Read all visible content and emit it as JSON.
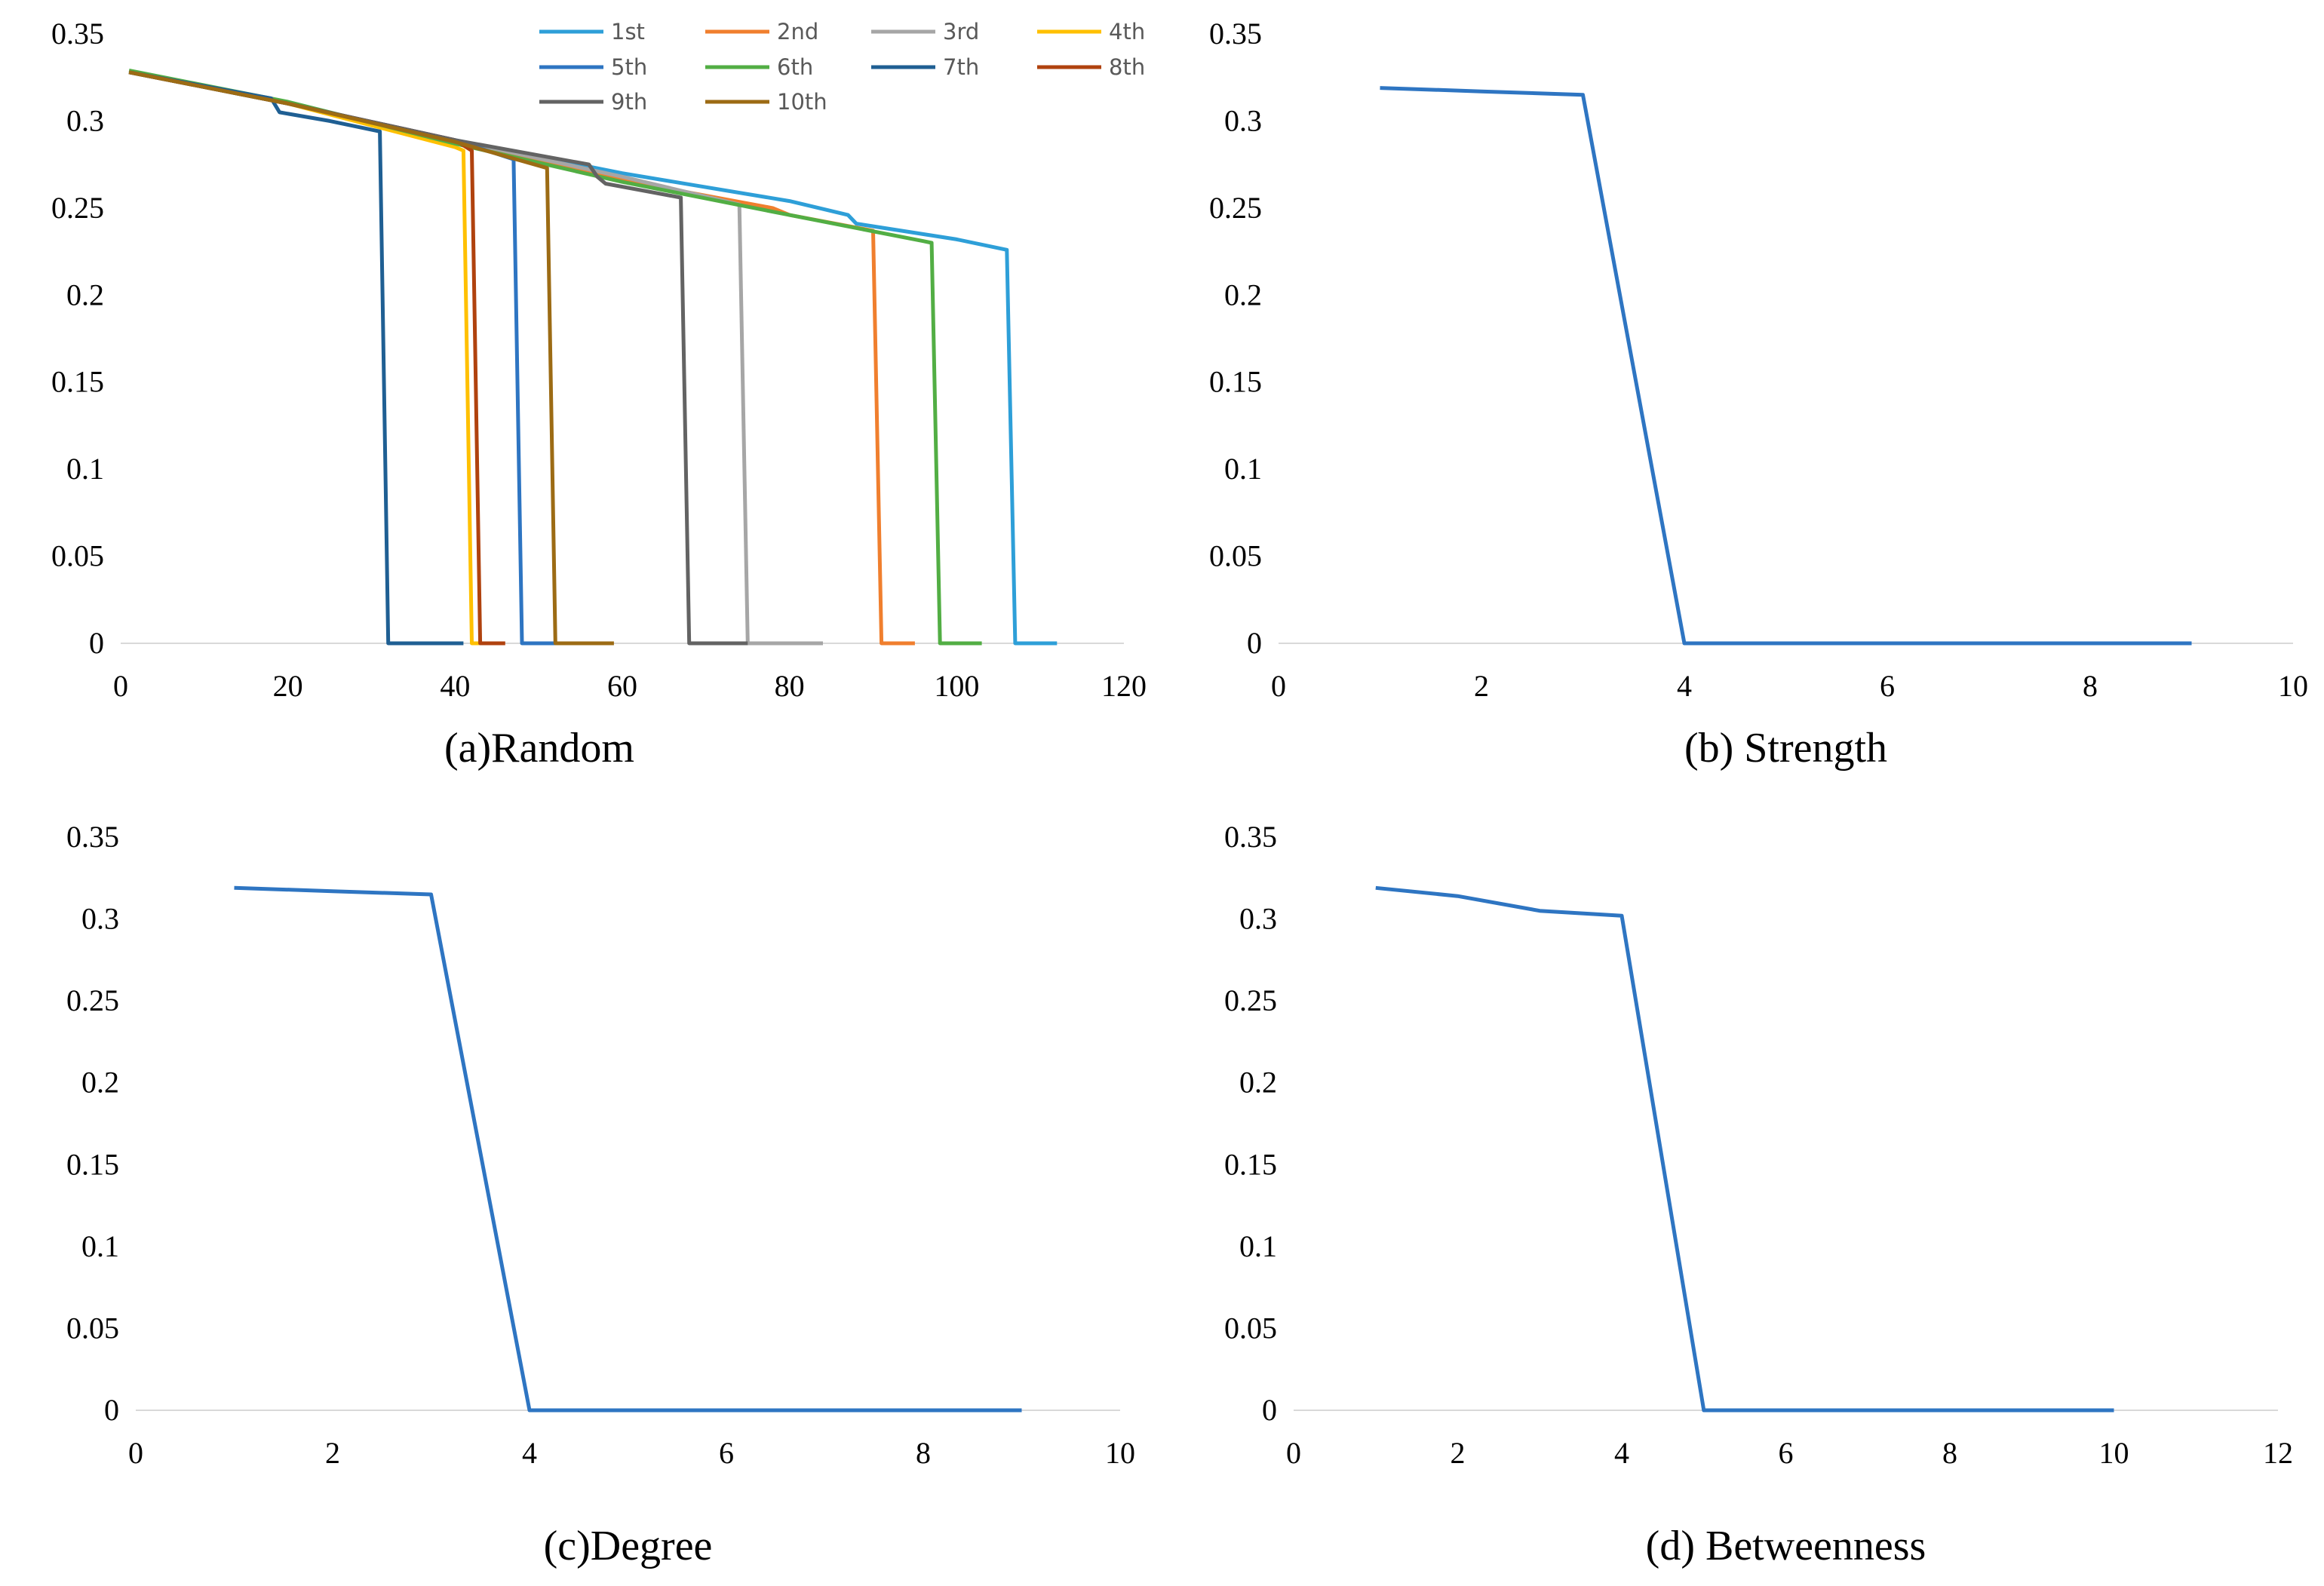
{
  "chart_data": [
    {
      "id": "a",
      "type": "line",
      "caption": "(a)Random",
      "xlim": [
        0,
        120
      ],
      "ylim": [
        0,
        0.35
      ],
      "xticks": [
        0,
        20,
        40,
        60,
        80,
        100,
        120
      ],
      "yticks": [
        0,
        0.05,
        0.1,
        0.15,
        0.2,
        0.25,
        0.3,
        0.35
      ],
      "ytick_labels": [
        "0",
        "0.05",
        "0.1",
        "0.15",
        "0.2",
        "0.25",
        "0.3",
        "0.35"
      ],
      "legend": "top",
      "series": [
        {
          "name": "1st",
          "color": "#2E9FD8",
          "x": [
            1,
            20,
            40,
            60,
            70,
            80,
            87,
            88,
            100,
            106,
            107,
            112
          ],
          "y": [
            0.328,
            0.31,
            0.289,
            0.27,
            0.262,
            0.254,
            0.246,
            0.241,
            0.232,
            0.226,
            0,
            0
          ]
        },
        {
          "name": "2nd",
          "color": "#F07F2E",
          "x": [
            1,
            20,
            40,
            60,
            78,
            80,
            90,
            91,
            95
          ],
          "y": [
            0.328,
            0.31,
            0.289,
            0.266,
            0.25,
            0.246,
            0.237,
            0,
            0
          ]
        },
        {
          "name": "3rd",
          "color": "#A6A6A6",
          "x": [
            1,
            20,
            40,
            60,
            74,
            75,
            84
          ],
          "y": [
            0.328,
            0.31,
            0.289,
            0.268,
            0.252,
            0,
            0
          ]
        },
        {
          "name": "4th",
          "color": "#FFC000",
          "x": [
            1,
            20,
            40,
            41,
            42,
            44
          ],
          "y": [
            0.328,
            0.31,
            0.285,
            0.283,
            0,
            0
          ]
        },
        {
          "name": "5th",
          "color": "#2E75C2",
          "x": [
            1,
            20,
            40,
            47,
            48,
            52
          ],
          "y": [
            0.328,
            0.31,
            0.289,
            0.278,
            0,
            0
          ]
        },
        {
          "name": "6th",
          "color": "#52AE44",
          "x": [
            1,
            20,
            40,
            60,
            80,
            96,
            97,
            98,
            103
          ],
          "y": [
            0.329,
            0.311,
            0.287,
            0.265,
            0.246,
            0.231,
            0.23,
            0,
            0
          ]
        },
        {
          "name": "7th",
          "color": "#1F5F93",
          "x": [
            1,
            18,
            19,
            25,
            31,
            32,
            41
          ],
          "y": [
            0.328,
            0.313,
            0.305,
            0.3,
            0.294,
            0,
            0
          ]
        },
        {
          "name": "8th",
          "color": "#B0420E",
          "x": [
            1,
            20,
            40,
            42,
            43,
            46
          ],
          "y": [
            0.328,
            0.31,
            0.289,
            0.283,
            0,
            0
          ]
        },
        {
          "name": "9th",
          "color": "#636363",
          "x": [
            1,
            20,
            40,
            56,
            57,
            58,
            67,
            68,
            75
          ],
          "y": [
            0.328,
            0.31,
            0.289,
            0.275,
            0.268,
            0.264,
            0.256,
            0,
            0
          ]
        },
        {
          "name": "10th",
          "color": "#9C6B14",
          "x": [
            1,
            20,
            40,
            51,
            52,
            59
          ],
          "y": [
            0.328,
            0.31,
            0.288,
            0.273,
            0,
            0
          ]
        }
      ]
    },
    {
      "id": "b",
      "type": "line",
      "caption": "(b) Strength",
      "xlim": [
        0,
        10
      ],
      "ylim": [
        0,
        0.35
      ],
      "xticks": [
        0,
        2,
        4,
        6,
        8,
        10
      ],
      "yticks": [
        0,
        0.05,
        0.1,
        0.15,
        0.2,
        0.25,
        0.3,
        0.35
      ],
      "ytick_labels": [
        "0",
        "0.05",
        "0.1",
        "0.15",
        "0.2",
        "0.25",
        "0.3",
        "0.35"
      ],
      "series": [
        {
          "name": "Strength",
          "color": "#2E75C2",
          "x": [
            1,
            2,
            3,
            4,
            5,
            6,
            7,
            8,
            9
          ],
          "y": [
            0.319,
            0.317,
            0.315,
            0,
            0,
            0,
            0,
            0,
            0
          ]
        }
      ]
    },
    {
      "id": "c",
      "type": "line",
      "caption": "(c)Degree",
      "xlim": [
        0,
        10
      ],
      "ylim": [
        0,
        0.35
      ],
      "xticks": [
        0,
        2,
        4,
        6,
        8,
        10
      ],
      "yticks": [
        0,
        0.05,
        0.1,
        0.15,
        0.2,
        0.25,
        0.3,
        0.35
      ],
      "ytick_labels": [
        "0",
        "0.05",
        "0.1",
        "0.15",
        "0.2",
        "0.25",
        "0.3",
        "0.35"
      ],
      "series": [
        {
          "name": "Degree",
          "color": "#2E75C2",
          "x": [
            1,
            2,
            3,
            4,
            5,
            6,
            7,
            8,
            9
          ],
          "y": [
            0.319,
            0.317,
            0.315,
            0,
            0,
            0,
            0,
            0,
            0
          ]
        }
      ]
    },
    {
      "id": "d",
      "type": "line",
      "caption": "(d) Betweenness",
      "xlim": [
        0,
        12
      ],
      "ylim": [
        0,
        0.35
      ],
      "xticks": [
        0,
        2,
        4,
        6,
        8,
        10,
        12
      ],
      "yticks": [
        0,
        0.05,
        0.1,
        0.15,
        0.2,
        0.25,
        0.3,
        0.35
      ],
      "ytick_labels": [
        "0",
        "0.05",
        "0.1",
        "0.15",
        "0.2",
        "0.25",
        "0.3",
        "0.35"
      ],
      "series": [
        {
          "name": "Betweenness",
          "color": "#2E75C2",
          "x": [
            1,
            2,
            3,
            4,
            5,
            6,
            7,
            8,
            9,
            10
          ],
          "y": [
            0.319,
            0.314,
            0.305,
            0.302,
            0,
            0,
            0,
            0,
            0,
            0
          ]
        }
      ]
    }
  ]
}
